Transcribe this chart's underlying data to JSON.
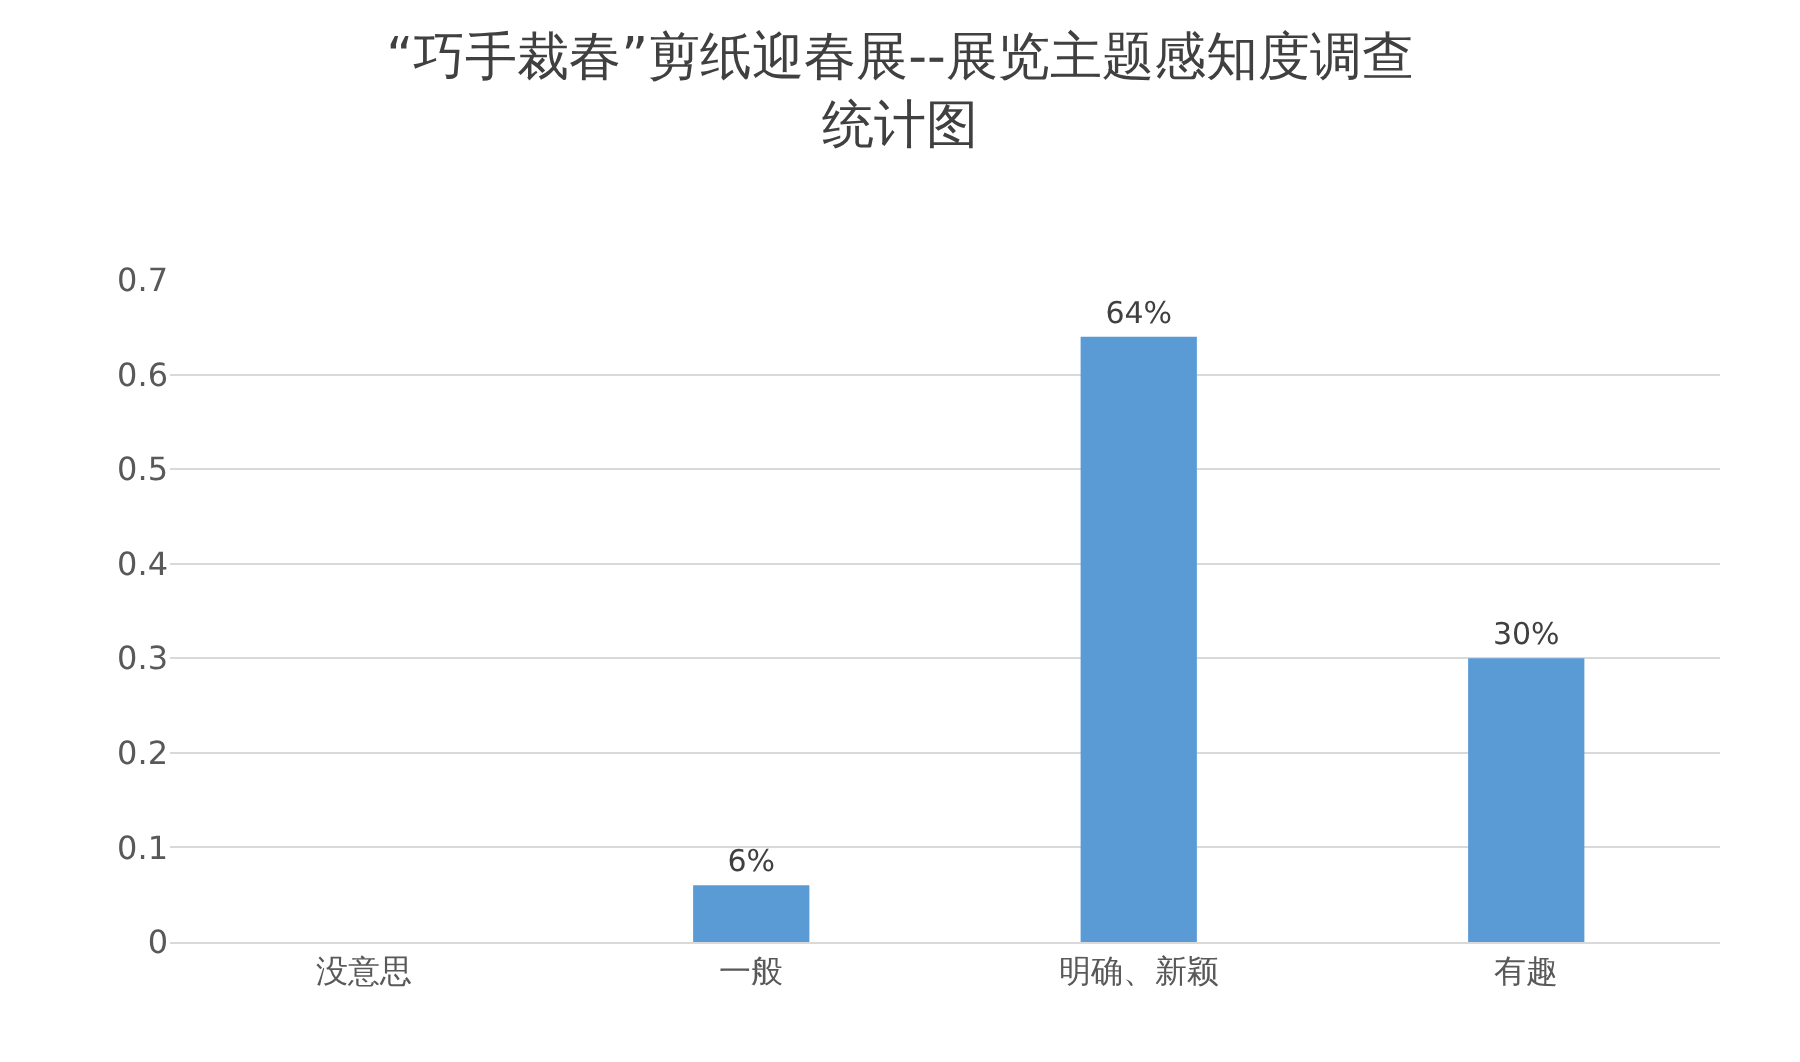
{
  "chart_data": {
    "type": "bar",
    "title": "“巧手裁春”剪纸迎春展--展览主题感知度调查统计图",
    "categories": [
      "没意思",
      "一般",
      "明确、新颖",
      "有趣"
    ],
    "values": [
      null,
      0.06,
      0.64,
      0.3
    ],
    "value_labels": [
      null,
      "6%",
      "64%",
      "30%"
    ],
    "color": "#5b9bd5",
    "ylim": [
      0,
      0.7
    ],
    "yticks": [
      0,
      0.1,
      0.2,
      0.3,
      0.4,
      0.5,
      0.6,
      0.7
    ],
    "grid": "y",
    "legend": false
  }
}
